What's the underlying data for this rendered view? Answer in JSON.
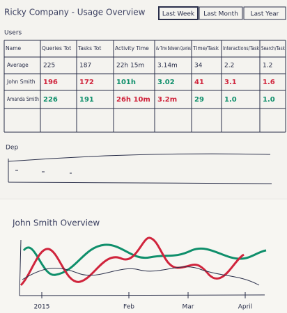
{
  "header": {
    "title": "Ricky Company - Usage Overview",
    "tabs": [
      "Last Week",
      "Last Month",
      "Last Year"
    ]
  },
  "users": {
    "label": "Users",
    "columns": [
      "Name",
      "Queries Tot",
      "Tasks Tot",
      "Activity Time",
      "Av Time Between Queries",
      "Time/Task",
      "Interactions/Task",
      "Search/Task"
    ],
    "rows": [
      [
        "Average",
        "225",
        "187",
        "22h 15m",
        "3.14m",
        "34",
        "2.2",
        "1.2"
      ],
      [
        "John Smith",
        "196",
        "172",
        "101h",
        "3.02",
        "41",
        "3.1",
        "1.6"
      ],
      [
        "Amanda Smith",
        "226",
        "191",
        "26h 10m",
        "3.2m",
        "29",
        "1.0",
        "1.0"
      ]
    ]
  },
  "department": {
    "label": "Dep"
  },
  "overview": {
    "title": "John Smith Overview",
    "x_labels": [
      "2015",
      "Feb",
      "Mar",
      "April"
    ]
  }
}
